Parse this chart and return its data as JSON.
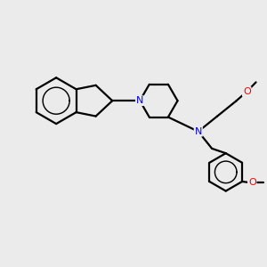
{
  "bg_color": "#ebebeb",
  "bond_color": "#000000",
  "N_color": "#0000ff",
  "O_color": "#ff0000",
  "bond_width": 1.6,
  "fig_width": 3.0,
  "fig_height": 3.0,
  "dpi": 100,
  "xlim": [
    0,
    10
  ],
  "ylim": [
    0,
    10
  ]
}
